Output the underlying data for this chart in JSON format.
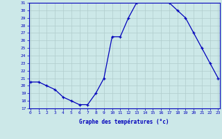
{
  "hours": [
    0,
    1,
    2,
    3,
    4,
    5,
    6,
    7,
    8,
    9,
    10,
    11,
    12,
    13,
    14,
    15,
    16,
    17,
    18,
    19,
    20,
    21,
    22,
    23
  ],
  "temps": [
    20.5,
    20.5,
    20.0,
    19.5,
    18.5,
    18.0,
    17.5,
    17.5,
    19.0,
    21.0,
    26.5,
    26.5,
    29.0,
    31.0,
    31.5,
    31.5,
    31.5,
    31.0,
    30.0,
    29.0,
    27.0,
    25.0,
    23.0,
    21.0
  ],
  "ylim": [
    17,
    31
  ],
  "yticks": [
    17,
    18,
    19,
    20,
    21,
    22,
    23,
    24,
    25,
    26,
    27,
    28,
    29,
    30,
    31
  ],
  "xticks": [
    0,
    1,
    2,
    3,
    4,
    5,
    6,
    7,
    8,
    9,
    10,
    11,
    12,
    13,
    14,
    15,
    16,
    17,
    18,
    19,
    20,
    21,
    22,
    23
  ],
  "xlabel": "Graphe des températures (°c)",
  "line_color": "#0000bb",
  "marker": "+",
  "bg_color": "#cce8e8",
  "grid_color_minor": "#b0cccc",
  "grid_color_major": "#99bbbb",
  "label_color": "#0000bb"
}
